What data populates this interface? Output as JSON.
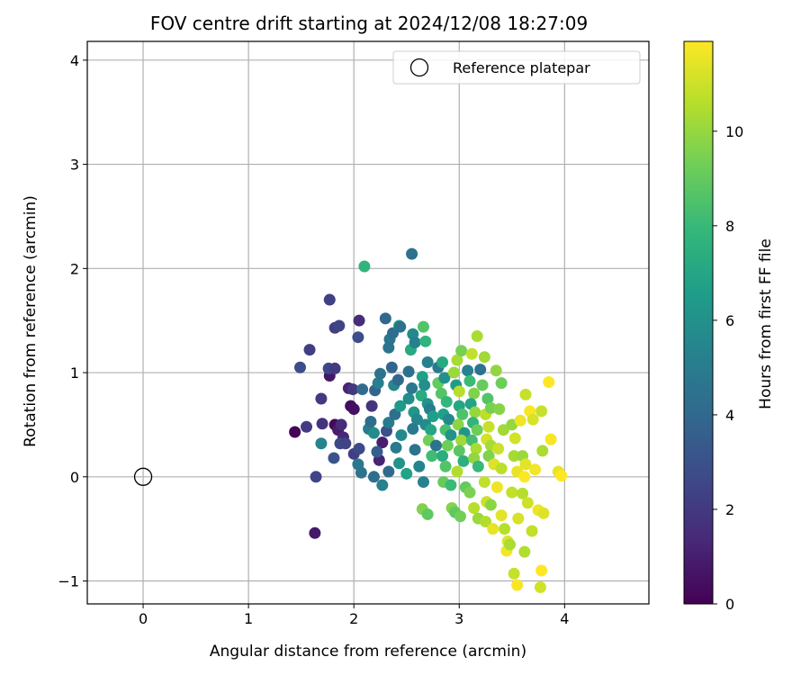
{
  "chart_data": {
    "type": "scatter",
    "title": "FOV centre drift starting at 2024/12/08 18:27:09",
    "xlabel": "Angular distance from reference (arcmin)",
    "ylabel": "Rotation from reference (arcmin)",
    "xlim": [
      -0.53,
      4.8
    ],
    "ylim": [
      -1.22,
      4.18
    ],
    "xticks": [
      0,
      1,
      2,
      3,
      4
    ],
    "yticks": [
      -1,
      0,
      1,
      2,
      3,
      4
    ],
    "grid": true,
    "legend": {
      "position": "upper right",
      "entries": [
        "Reference platepar"
      ]
    },
    "reference_point": {
      "x": 0,
      "y": 0,
      "label": "Reference platepar"
    },
    "colorbar": {
      "label": "Hours from first FF file",
      "range": [
        0,
        11.9
      ],
      "ticks": [
        0,
        2,
        4,
        6,
        8,
        10
      ],
      "colormap": "viridis"
    },
    "colormap_stops": [
      "#440154",
      "#482878",
      "#3e4989",
      "#31688e",
      "#26828e",
      "#1f9e89",
      "#35b779",
      "#6ece58",
      "#b5de2b",
      "#fde725"
    ],
    "points": [
      {
        "x": 1.44,
        "y": 0.43,
        "t": 0.1
      },
      {
        "x": 1.63,
        "y": -0.54,
        "t": 0.8
      },
      {
        "x": 1.82,
        "y": 0.5,
        "t": 0.3
      },
      {
        "x": 1.97,
        "y": 0.68,
        "t": 0.4
      },
      {
        "x": 2.0,
        "y": 0.65,
        "t": 0.5
      },
      {
        "x": 1.77,
        "y": 0.97,
        "t": 0.7
      },
      {
        "x": 1.85,
        "y": 0.45,
        "t": 0.9
      },
      {
        "x": 1.9,
        "y": 0.38,
        "t": 1.3
      },
      {
        "x": 1.88,
        "y": 0.5,
        "t": 1.5
      },
      {
        "x": 1.55,
        "y": 0.48,
        "t": 2.1
      },
      {
        "x": 1.7,
        "y": 0.51,
        "t": 1.8
      },
      {
        "x": 1.64,
        "y": 0.0,
        "t": 2.4
      },
      {
        "x": 1.69,
        "y": 0.75,
        "t": 2.0
      },
      {
        "x": 1.49,
        "y": 1.05,
        "t": 2.8
      },
      {
        "x": 1.58,
        "y": 1.22,
        "t": 2.2
      },
      {
        "x": 1.77,
        "y": 1.7,
        "t": 2.3
      },
      {
        "x": 1.82,
        "y": 1.43,
        "t": 2.2
      },
      {
        "x": 1.86,
        "y": 1.45,
        "t": 2.4
      },
      {
        "x": 2.05,
        "y": 1.5,
        "t": 1.5
      },
      {
        "x": 2.04,
        "y": 1.34,
        "t": 2.8
      },
      {
        "x": 1.76,
        "y": 1.04,
        "t": 2.6
      },
      {
        "x": 1.82,
        "y": 1.04,
        "t": 2.1
      },
      {
        "x": 1.95,
        "y": 0.85,
        "t": 1.2
      },
      {
        "x": 1.99,
        "y": 0.84,
        "t": 1.9
      },
      {
        "x": 1.87,
        "y": 0.32,
        "t": 2.6
      },
      {
        "x": 1.92,
        "y": 0.32,
        "t": 2.4
      },
      {
        "x": 1.81,
        "y": 0.18,
        "t": 3.1
      },
      {
        "x": 1.69,
        "y": 0.32,
        "t": 5.4
      },
      {
        "x": 2.0,
        "y": 0.22,
        "t": 2.2
      },
      {
        "x": 2.05,
        "y": 0.27,
        "t": 2.7
      },
      {
        "x": 2.07,
        "y": 0.04,
        "t": 4.5
      },
      {
        "x": 2.04,
        "y": 0.12,
        "t": 4.8
      },
      {
        "x": 2.14,
        "y": 0.46,
        "t": 5.0
      },
      {
        "x": 2.17,
        "y": 0.68,
        "t": 1.8
      },
      {
        "x": 2.08,
        "y": 0.84,
        "t": 4.1
      },
      {
        "x": 2.2,
        "y": 0.83,
        "t": 3.8
      },
      {
        "x": 2.23,
        "y": 0.9,
        "t": 5.1
      },
      {
        "x": 2.25,
        "y": 0.99,
        "t": 4.6
      },
      {
        "x": 2.19,
        "y": 0.42,
        "t": 5.7
      },
      {
        "x": 2.16,
        "y": 0.53,
        "t": 4.2
      },
      {
        "x": 2.24,
        "y": 0.16,
        "t": 1.2
      },
      {
        "x": 2.27,
        "y": 0.33,
        "t": 1.0
      },
      {
        "x": 2.22,
        "y": 0.24,
        "t": 3.5
      },
      {
        "x": 2.31,
        "y": 0.44,
        "t": 3.0
      },
      {
        "x": 2.33,
        "y": 0.52,
        "t": 4.9
      },
      {
        "x": 2.19,
        "y": 0.0,
        "t": 4.3
      },
      {
        "x": 2.27,
        "y": -0.08,
        "t": 5.2
      },
      {
        "x": 2.33,
        "y": 0.05,
        "t": 4.1
      },
      {
        "x": 2.3,
        "y": 1.52,
        "t": 4.0
      },
      {
        "x": 2.34,
        "y": 1.32,
        "t": 4.7
      },
      {
        "x": 2.37,
        "y": 1.38,
        "t": 4.2
      },
      {
        "x": 2.33,
        "y": 1.24,
        "t": 4.6
      },
      {
        "x": 2.36,
        "y": 1.05,
        "t": 3.9
      },
      {
        "x": 2.43,
        "y": 1.45,
        "t": 6.5
      },
      {
        "x": 2.44,
        "y": 1.44,
        "t": 4.4
      },
      {
        "x": 2.38,
        "y": 0.88,
        "t": 5.5
      },
      {
        "x": 2.42,
        "y": 0.93,
        "t": 4.0
      },
      {
        "x": 2.39,
        "y": 0.6,
        "t": 4.3
      },
      {
        "x": 2.44,
        "y": 0.68,
        "t": 6.4
      },
      {
        "x": 2.4,
        "y": 0.28,
        "t": 4.9
      },
      {
        "x": 2.45,
        "y": 0.4,
        "t": 5.6
      },
      {
        "x": 2.43,
        "y": 0.13,
        "t": 6.1
      },
      {
        "x": 2.5,
        "y": 0.03,
        "t": 6.8
      },
      {
        "x": 2.52,
        "y": 1.01,
        "t": 4.3
      },
      {
        "x": 2.55,
        "y": 2.14,
        "t": 4.4
      },
      {
        "x": 2.1,
        "y": 2.02,
        "t": 7.7
      },
      {
        "x": 2.54,
        "y": 1.22,
        "t": 7.2
      },
      {
        "x": 2.56,
        "y": 1.37,
        "t": 5.6
      },
      {
        "x": 2.58,
        "y": 1.29,
        "t": 5.2
      },
      {
        "x": 2.52,
        "y": 0.75,
        "t": 5.8
      },
      {
        "x": 2.55,
        "y": 0.85,
        "t": 4.8
      },
      {
        "x": 2.57,
        "y": 0.62,
        "t": 6.3
      },
      {
        "x": 2.6,
        "y": 0.55,
        "t": 5.5
      },
      {
        "x": 2.56,
        "y": 0.46,
        "t": 4.9
      },
      {
        "x": 2.58,
        "y": 0.26,
        "t": 4.5
      },
      {
        "x": 2.62,
        "y": 0.1,
        "t": 5.4
      },
      {
        "x": 2.66,
        "y": 1.44,
        "t": 8.6
      },
      {
        "x": 2.68,
        "y": 1.3,
        "t": 7.7
      },
      {
        "x": 2.7,
        "y": 1.1,
        "t": 5.2
      },
      {
        "x": 2.65,
        "y": 0.96,
        "t": 6.7
      },
      {
        "x": 2.67,
        "y": 0.88,
        "t": 5.9
      },
      {
        "x": 2.64,
        "y": 0.78,
        "t": 7.3
      },
      {
        "x": 2.7,
        "y": 0.7,
        "t": 6.1
      },
      {
        "x": 2.72,
        "y": 0.65,
        "t": 5.0
      },
      {
        "x": 2.75,
        "y": 0.58,
        "t": 6.6
      },
      {
        "x": 2.68,
        "y": 0.5,
        "t": 5.7
      },
      {
        "x": 2.73,
        "y": 0.45,
        "t": 7.0
      },
      {
        "x": 2.71,
        "y": 0.35,
        "t": 9.3
      },
      {
        "x": 2.78,
        "y": 0.3,
        "t": 4.6
      },
      {
        "x": 2.74,
        "y": 0.2,
        "t": 8.2
      },
      {
        "x": 2.66,
        "y": -0.05,
        "t": 5.3
      },
      {
        "x": 2.65,
        "y": -0.31,
        "t": 9.6
      },
      {
        "x": 2.7,
        "y": -0.36,
        "t": 8.9
      },
      {
        "x": 2.8,
        "y": 1.05,
        "t": 4.9
      },
      {
        "x": 2.84,
        "y": 1.1,
        "t": 7.2
      },
      {
        "x": 2.8,
        "y": 0.9,
        "t": 9.0
      },
      {
        "x": 2.86,
        "y": 0.95,
        "t": 6.0
      },
      {
        "x": 2.83,
        "y": 0.8,
        "t": 8.7
      },
      {
        "x": 2.88,
        "y": 0.72,
        "t": 7.9
      },
      {
        "x": 2.85,
        "y": 0.6,
        "t": 6.7
      },
      {
        "x": 2.9,
        "y": 0.55,
        "t": 5.6
      },
      {
        "x": 2.87,
        "y": 0.45,
        "t": 8.4
      },
      {
        "x": 2.92,
        "y": 0.4,
        "t": 6.2
      },
      {
        "x": 2.89,
        "y": 0.3,
        "t": 9.2
      },
      {
        "x": 2.84,
        "y": 0.2,
        "t": 7.4
      },
      {
        "x": 2.87,
        "y": 0.1,
        "t": 8.6
      },
      {
        "x": 2.85,
        "y": -0.05,
        "t": 9.1
      },
      {
        "x": 2.92,
        "y": -0.08,
        "t": 8.1
      },
      {
        "x": 2.93,
        "y": -0.3,
        "t": 9.7
      },
      {
        "x": 2.96,
        "y": -0.34,
        "t": 8.9
      },
      {
        "x": 2.95,
        "y": 1.0,
        "t": 10.1
      },
      {
        "x": 2.98,
        "y": 1.12,
        "t": 10.3
      },
      {
        "x": 2.97,
        "y": 0.88,
        "t": 6.4
      },
      {
        "x": 3.0,
        "y": 0.82,
        "t": 10.6
      },
      {
        "x": 3.02,
        "y": 1.21,
        "t": 9.4
      },
      {
        "x": 3.0,
        "y": 0.68,
        "t": 7.0
      },
      {
        "x": 3.03,
        "y": 0.6,
        "t": 8.5
      },
      {
        "x": 2.99,
        "y": 0.5,
        "t": 9.8
      },
      {
        "x": 3.05,
        "y": 0.42,
        "t": 6.3
      },
      {
        "x": 3.02,
        "y": 0.35,
        "t": 10.2
      },
      {
        "x": 3.0,
        "y": 0.25,
        "t": 8.8
      },
      {
        "x": 3.04,
        "y": 0.15,
        "t": 7.5
      },
      {
        "x": 2.98,
        "y": 0.05,
        "t": 10.5
      },
      {
        "x": 3.06,
        "y": -0.1,
        "t": 9.0
      },
      {
        "x": 3.01,
        "y": -0.38,
        "t": 9.3
      },
      {
        "x": 3.08,
        "y": 1.02,
        "t": 5.3
      },
      {
        "x": 3.12,
        "y": 1.18,
        "t": 10.8
      },
      {
        "x": 3.1,
        "y": 0.92,
        "t": 8.1
      },
      {
        "x": 3.14,
        "y": 0.8,
        "t": 9.6
      },
      {
        "x": 3.11,
        "y": 0.7,
        "t": 6.9
      },
      {
        "x": 3.15,
        "y": 0.62,
        "t": 10.0
      },
      {
        "x": 3.13,
        "y": 0.52,
        "t": 7.8
      },
      {
        "x": 3.17,
        "y": 0.45,
        "t": 9.2
      },
      {
        "x": 3.12,
        "y": 0.35,
        "t": 8.3
      },
      {
        "x": 3.16,
        "y": 0.27,
        "t": 10.4
      },
      {
        "x": 3.14,
        "y": 0.18,
        "t": 9.9
      },
      {
        "x": 3.18,
        "y": 0.1,
        "t": 8.0
      },
      {
        "x": 3.1,
        "y": -0.15,
        "t": 9.5
      },
      {
        "x": 3.14,
        "y": -0.3,
        "t": 10.6
      },
      {
        "x": 3.18,
        "y": -0.4,
        "t": 10.1
      },
      {
        "x": 3.17,
        "y": 1.35,
        "t": 10.4
      },
      {
        "x": 3.2,
        "y": 1.03,
        "t": 4.5
      },
      {
        "x": 3.24,
        "y": 1.15,
        "t": 10.2
      },
      {
        "x": 3.22,
        "y": 0.88,
        "t": 9.1
      },
      {
        "x": 3.27,
        "y": 0.75,
        "t": 8.6
      },
      {
        "x": 3.25,
        "y": 0.6,
        "t": 10.7
      },
      {
        "x": 3.3,
        "y": 0.66,
        "t": 9.4
      },
      {
        "x": 3.28,
        "y": 0.48,
        "t": 10.9
      },
      {
        "x": 3.26,
        "y": 0.36,
        "t": 11.1
      },
      {
        "x": 3.3,
        "y": 0.3,
        "t": 10.3
      },
      {
        "x": 3.28,
        "y": 0.2,
        "t": 9.6
      },
      {
        "x": 3.33,
        "y": 0.12,
        "t": 11.3
      },
      {
        "x": 3.24,
        "y": -0.05,
        "t": 10.8
      },
      {
        "x": 3.26,
        "y": -0.24,
        "t": 11.0
      },
      {
        "x": 3.3,
        "y": -0.27,
        "t": 9.8
      },
      {
        "x": 3.25,
        "y": -0.43,
        "t": 10.5
      },
      {
        "x": 3.32,
        "y": -0.5,
        "t": 11.5
      },
      {
        "x": 3.35,
        "y": 1.02,
        "t": 9.9
      },
      {
        "x": 3.4,
        "y": 0.9,
        "t": 9.2
      },
      {
        "x": 3.38,
        "y": 0.65,
        "t": 9.7
      },
      {
        "x": 3.42,
        "y": 0.45,
        "t": 10.2
      },
      {
        "x": 3.37,
        "y": 0.27,
        "t": 11.0
      },
      {
        "x": 3.4,
        "y": 0.08,
        "t": 10.7
      },
      {
        "x": 3.36,
        "y": -0.1,
        "t": 11.6
      },
      {
        "x": 3.4,
        "y": -0.37,
        "t": 11.4
      },
      {
        "x": 3.43,
        "y": -0.5,
        "t": 10.6
      },
      {
        "x": 3.46,
        "y": -0.62,
        "t": 11.3
      },
      {
        "x": 3.45,
        "y": -0.71,
        "t": 11.7
      },
      {
        "x": 3.48,
        "y": -0.65,
        "t": 10.4
      },
      {
        "x": 3.5,
        "y": 0.5,
        "t": 10.0
      },
      {
        "x": 3.53,
        "y": 0.37,
        "t": 11.1
      },
      {
        "x": 3.52,
        "y": 0.2,
        "t": 10.3
      },
      {
        "x": 3.55,
        "y": 0.05,
        "t": 11.5
      },
      {
        "x": 3.5,
        "y": -0.15,
        "t": 10.8
      },
      {
        "x": 3.56,
        "y": -0.4,
        "t": 11.2
      },
      {
        "x": 3.52,
        "y": -0.93,
        "t": 10.9
      },
      {
        "x": 3.55,
        "y": -1.04,
        "t": 11.8
      },
      {
        "x": 3.58,
        "y": 0.54,
        "t": 11.6
      },
      {
        "x": 3.6,
        "y": 0.2,
        "t": 10.1
      },
      {
        "x": 3.62,
        "y": 0.0,
        "t": 11.9
      },
      {
        "x": 3.63,
        "y": 0.12,
        "t": 11.4
      },
      {
        "x": 3.6,
        "y": -0.16,
        "t": 10.6
      },
      {
        "x": 3.65,
        "y": -0.25,
        "t": 11.0
      },
      {
        "x": 3.62,
        "y": -0.72,
        "t": 10.5
      },
      {
        "x": 3.63,
        "y": 0.79,
        "t": 10.9
      },
      {
        "x": 3.67,
        "y": 0.63,
        "t": 11.8
      },
      {
        "x": 3.7,
        "y": 0.55,
        "t": 11.2
      },
      {
        "x": 3.72,
        "y": 0.07,
        "t": 11.7
      },
      {
        "x": 3.69,
        "y": -0.52,
        "t": 10.8
      },
      {
        "x": 3.75,
        "y": -0.32,
        "t": 11.6
      },
      {
        "x": 3.78,
        "y": 0.63,
        "t": 10.9
      },
      {
        "x": 3.79,
        "y": 0.25,
        "t": 10.4
      },
      {
        "x": 3.8,
        "y": -0.35,
        "t": 11.3
      },
      {
        "x": 3.78,
        "y": -0.9,
        "t": 11.9
      },
      {
        "x": 3.77,
        "y": -1.06,
        "t": 11.1
      },
      {
        "x": 3.85,
        "y": 0.91,
        "t": 11.9
      },
      {
        "x": 3.87,
        "y": 0.36,
        "t": 11.8
      },
      {
        "x": 3.94,
        "y": 0.05,
        "t": 11.5
      },
      {
        "x": 3.97,
        "y": 0.01,
        "t": 11.9
      }
    ]
  }
}
